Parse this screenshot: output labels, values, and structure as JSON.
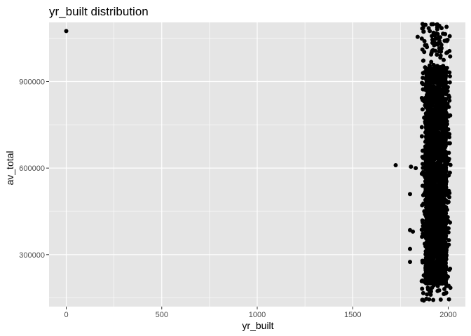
{
  "chart_data": {
    "type": "scatter",
    "title": "yr_built  distribution",
    "xlabel": "yr_built",
    "ylabel": "av_total",
    "xlim": [
      -90,
      2090
    ],
    "ylim": [
      120000,
      1105000
    ],
    "x_ticks": [
      0,
      500,
      1000,
      1500,
      2000
    ],
    "x_tick_labels": [
      "0",
      "500",
      "1000",
      "1500",
      "2000"
    ],
    "y_ticks": [
      300000,
      600000,
      900000
    ],
    "y_tick_labels": [
      "300000",
      "600000",
      "900000"
    ],
    "grid": true,
    "panel_background": "#e5e5e5",
    "grid_color": "#ffffff",
    "point_color": "#000000",
    "outliers": [
      {
        "x": 0,
        "y": 1075000
      },
      {
        "x": 1725,
        "y": 610000
      },
      {
        "x": 1800,
        "y": 510000
      },
      {
        "x": 1805,
        "y": 605000
      },
      {
        "x": 1800,
        "y": 385000
      },
      {
        "x": 1815,
        "y": 380000
      },
      {
        "x": 1830,
        "y": 600000
      },
      {
        "x": 1800,
        "y": 275000
      },
      {
        "x": 1840,
        "y": 1055000
      },
      {
        "x": 1800,
        "y": 320000
      }
    ],
    "dense_cluster": {
      "x_range": [
        1810,
        2012
      ],
      "y_range": [
        140000,
        1100000
      ],
      "core_x_range": [
        1880,
        1990
      ],
      "core_y_range": [
        200000,
        950000
      ]
    }
  }
}
